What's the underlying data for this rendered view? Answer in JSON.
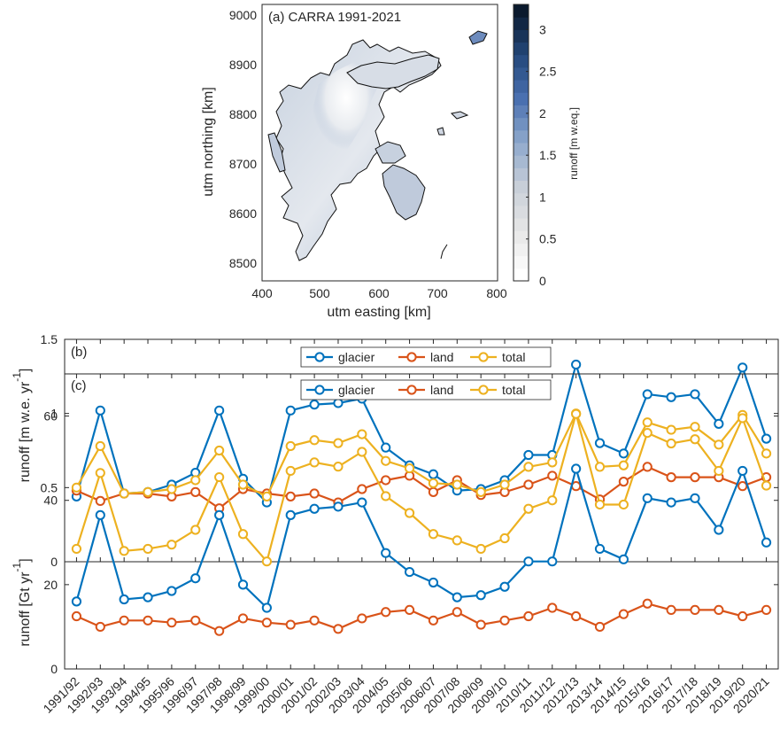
{
  "map_panel": {
    "title": "(a) CARRA 1991-2021",
    "xlabel": "utm easting [km]",
    "ylabel": "utm northing [km]",
    "xticks": [
      "400",
      "500",
      "600",
      "700",
      "800"
    ],
    "yticks": [
      "8500",
      "8600",
      "8700",
      "8800",
      "8900",
      "9000"
    ],
    "colorbar_label": "runoff [m w.eq.]",
    "colorbar_ticks": [
      "0",
      "0.5",
      "1",
      "1.5",
      "2",
      "2.5",
      "3"
    ],
    "colorbar_range": [
      0,
      3.3
    ],
    "colors": [
      "#ffffff",
      "#e6e6e6",
      "#c8cfd8",
      "#8fa9cc",
      "#4a70b0",
      "#23477a",
      "#0b1a2e"
    ]
  },
  "chart_data": [
    {
      "type": "line",
      "panel_label": "(b)",
      "ylabel": "runoff [m w.e. yr",
      "ylabel_sup": "-1",
      "ylabel_close": "]",
      "ylim": [
        0,
        1.5
      ],
      "yticks": [
        "0",
        "0.5",
        "1",
        "1.5"
      ],
      "legend_position": "top",
      "categories": [
        "1991/92",
        "1992/93",
        "1993/94",
        "1994/95",
        "1995/96",
        "1996/97",
        "1997/98",
        "1998/99",
        "1999/00",
        "2000/01",
        "2001/02",
        "2002/03",
        "2003/04",
        "2004/05",
        "2005/06",
        "2006/07",
        "2007/08",
        "2008/09",
        "2009/10",
        "2010/11",
        "2011/12",
        "2012/13",
        "2013/14",
        "2014/15",
        "2015/16",
        "2016/17",
        "2017/18",
        "2018/19",
        "2019/20",
        "2020/21"
      ],
      "series": [
        {
          "name": "glacier",
          "color": "#0072bd",
          "values": [
            0.44,
            1.02,
            0.46,
            0.47,
            0.52,
            0.6,
            1.02,
            0.56,
            0.4,
            1.02,
            1.06,
            1.07,
            1.1,
            0.77,
            0.65,
            0.59,
            0.48,
            0.49,
            0.55,
            0.72,
            0.72,
            1.33,
            0.8,
            0.73,
            1.13,
            1.11,
            1.13,
            0.93,
            1.31,
            0.83
          ]
        },
        {
          "name": "land",
          "color": "#d95319",
          "values": [
            0.48,
            0.41,
            0.46,
            0.46,
            0.44,
            0.47,
            0.36,
            0.49,
            0.46,
            0.44,
            0.46,
            0.4,
            0.49,
            0.55,
            0.58,
            0.47,
            0.55,
            0.45,
            0.47,
            0.52,
            0.58,
            0.51,
            0.42,
            0.54,
            0.64,
            0.57,
            0.57,
            0.57,
            0.51,
            0.57
          ]
        },
        {
          "name": "total",
          "color": "#edb120",
          "values": [
            0.5,
            0.78,
            0.46,
            0.47,
            0.49,
            0.55,
            0.75,
            0.52,
            0.44,
            0.78,
            0.82,
            0.8,
            0.86,
            0.68,
            0.63,
            0.53,
            0.52,
            0.47,
            0.52,
            0.64,
            0.67,
            1.0,
            0.64,
            0.65,
            0.94,
            0.89,
            0.91,
            0.79,
            0.99,
            0.73
          ]
        }
      ]
    },
    {
      "type": "line",
      "panel_label": "(c)",
      "ylabel": "runoff [Gt yr",
      "ylabel_sup": "-1",
      "ylabel_close": "]",
      "ylim": [
        0,
        70
      ],
      "yticks": [
        "0",
        "20",
        "40",
        "60"
      ],
      "legend_position": "top",
      "categories": [
        "1991/92",
        "1992/93",
        "1993/94",
        "1994/95",
        "1995/96",
        "1996/97",
        "1997/98",
        "1998/99",
        "1999/00",
        "2000/01",
        "2001/02",
        "2002/03",
        "2003/04",
        "2004/05",
        "2005/06",
        "2006/07",
        "2007/08",
        "2008/09",
        "2009/10",
        "2010/11",
        "2011/12",
        "2012/13",
        "2013/14",
        "2014/15",
        "2015/16",
        "2016/17",
        "2017/18",
        "2018/19",
        "2019/20",
        "2020/21"
      ],
      "series": [
        {
          "name": "glacier",
          "color": "#0072bd",
          "values": [
            16,
            36.5,
            16.5,
            17,
            18.5,
            21.5,
            36.5,
            20,
            14.5,
            36.5,
            38,
            38.5,
            39.5,
            27.5,
            23,
            20.5,
            17,
            17.5,
            19.5,
            25.5,
            25.5,
            47.5,
            28.5,
            26,
            40.5,
            39.5,
            40.5,
            33,
            47,
            30
          ]
        },
        {
          "name": "land",
          "color": "#d95319",
          "values": [
            12.5,
            10,
            11.5,
            11.5,
            11,
            11.5,
            9,
            12,
            11,
            10.5,
            11.5,
            9.5,
            12,
            13.5,
            14,
            11.5,
            13.5,
            10.5,
            11.5,
            12.5,
            14.5,
            12.5,
            10,
            13,
            15.5,
            14,
            14,
            14,
            12.5,
            14
          ]
        },
        {
          "name": "total",
          "color": "#edb120",
          "values": [
            28.5,
            46.5,
            28,
            28.5,
            29.5,
            33,
            45.5,
            32,
            25.5,
            47,
            49,
            48,
            51.5,
            41,
            37,
            32,
            30.5,
            28.5,
            31,
            38,
            40,
            60.5,
            39,
            39,
            56,
            53.5,
            54.5,
            47,
            59.5,
            43.5
          ]
        }
      ]
    }
  ]
}
